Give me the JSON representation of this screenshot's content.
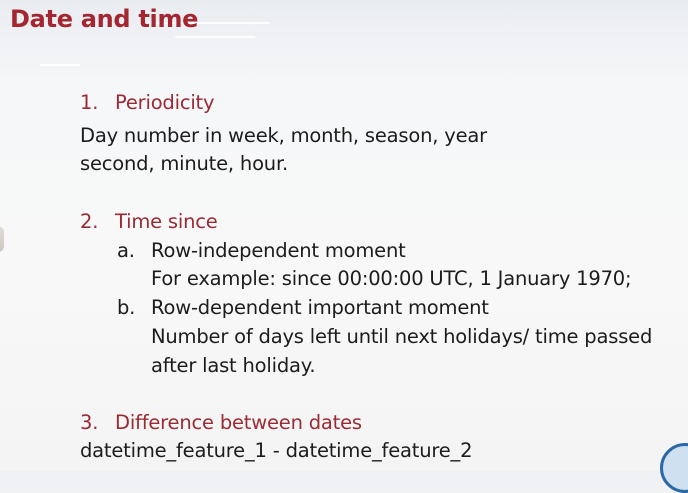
{
  "slide": {
    "title": "Date and time",
    "sections": [
      {
        "number": "1.",
        "heading": "Periodicity",
        "body": [
          "Day number in week, month, season, year",
          "second, minute, hour."
        ]
      },
      {
        "number": "2.",
        "heading": "Time since",
        "items": [
          {
            "letter": "a.",
            "title": "Row-independent moment",
            "body": [
              "For example: since 00:00:00 UTC, 1 January 1970;"
            ]
          },
          {
            "letter": "b.",
            "title": "Row-dependent important moment",
            "body": [
              "Number of days left until next holidays/ time passed",
              "after last holiday."
            ]
          }
        ]
      },
      {
        "number": "3.",
        "heading": "Difference between dates",
        "body": [
          "datetime_feature_1 - datetime_feature_2"
        ]
      }
    ]
  },
  "colors": {
    "title": "#a32630",
    "heading": "#9a2a33",
    "text": "#1c1c1c",
    "background": "#f8f8f8"
  }
}
